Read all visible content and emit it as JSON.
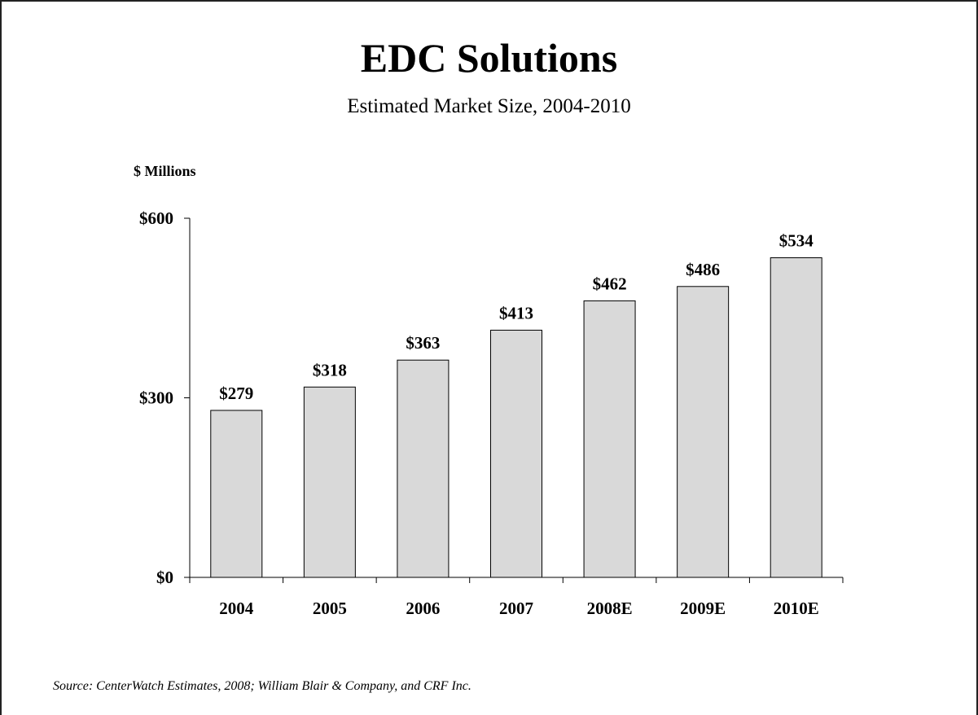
{
  "chart_data": {
    "type": "bar",
    "title": "EDC Solutions",
    "subtitle": "Estimated Market Size, 2004-2010",
    "ylabel": "$ Millions",
    "xlabel": "",
    "categories": [
      "2004",
      "2005",
      "2006",
      "2007",
      "2008E",
      "2009E",
      "2010E"
    ],
    "values": [
      279,
      318,
      363,
      413,
      462,
      486,
      534
    ],
    "data_labels": [
      "$279",
      "$318",
      "$363",
      "$413",
      "$462",
      "$486",
      "$534"
    ],
    "ylim": [
      0,
      600
    ],
    "yticks": [
      0,
      300,
      600
    ],
    "ytick_labels": [
      "$0",
      "$300",
      "$600"
    ],
    "grid": false,
    "legend": "none",
    "bar_color": "#d9d9d9",
    "bar_edge_color": "#000000",
    "source": "Source: CenterWatch Estimates, 2008; William Blair & Company, and CRF Inc."
  }
}
